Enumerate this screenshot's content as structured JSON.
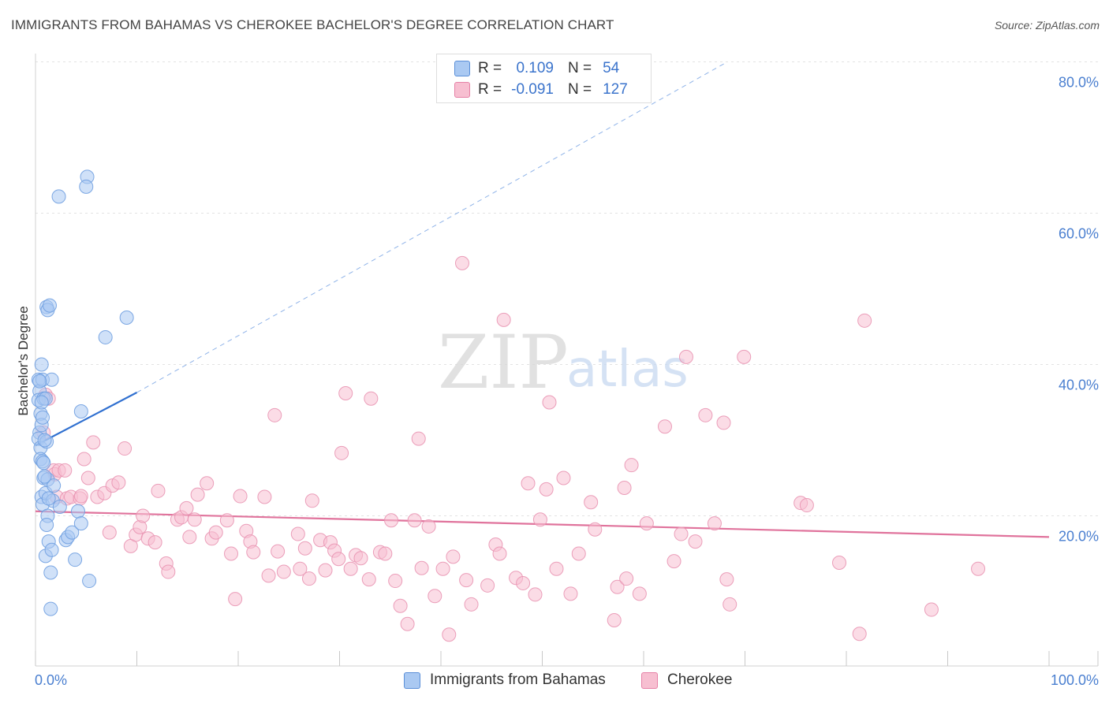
{
  "header": {
    "title": "IMMIGRANTS FROM BAHAMAS VS CHEROKEE BACHELOR'S DEGREE CORRELATION CHART",
    "source": "Source: ZipAtlas.com"
  },
  "watermark": {
    "zip": "ZIP",
    "atlas": "atlas"
  },
  "legend": {
    "rows": [
      {
        "r_label": "R =",
        "r_value": "0.109",
        "n_label": "N =",
        "n_value": "54",
        "color": "#aac9f2",
        "border": "#5a8fd8"
      },
      {
        "r_label": "R =",
        "r_value": "-0.091",
        "n_label": "N =",
        "n_value": "127",
        "color": "#f7bfd1",
        "border": "#e681a6"
      }
    ]
  },
  "bottom_legend": {
    "items": [
      {
        "label": "Immigrants from Bahamas",
        "color": "#aac9f2",
        "border": "#5a8fd8"
      },
      {
        "label": "Cherokee",
        "color": "#f7bfd1",
        "border": "#e681a6"
      }
    ]
  },
  "chart_data": {
    "type": "scatter",
    "title": "IMMIGRANTS FROM BAHAMAS VS CHEROKEE BACHELOR'S DEGREE CORRELATION CHART",
    "xlabel": "",
    "ylabel": "Bachelor's Degree",
    "xlim": [
      0,
      100
    ],
    "ylim": [
      0,
      80
    ],
    "x_tick_labels": [
      "0.0%",
      "100.0%"
    ],
    "y_ticks": [
      20,
      40,
      60,
      80
    ],
    "y_tick_labels": [
      "20.0%",
      "40.0%",
      "60.0%",
      "80.0%"
    ],
    "grid": true,
    "series": [
      {
        "name": "Immigrants from Bahamas",
        "color": "#aac9f2",
        "edge": "#6f9ee0",
        "trend": {
          "x": [
            0,
            10
          ],
          "y": [
            29.3,
            36.3
          ],
          "color": "#3070d0"
        },
        "trend_ext": {
          "x": [
            10,
            68
          ],
          "y": [
            36.3,
            79.8
          ],
          "color": "#8fb3e8"
        },
        "points": [
          [
            0.3,
            38.0
          ],
          [
            0.4,
            36.5
          ],
          [
            0.3,
            35.3
          ],
          [
            0.5,
            33.5
          ],
          [
            0.4,
            31.0
          ],
          [
            0.3,
            30.2
          ],
          [
            0.5,
            29.0
          ],
          [
            0.6,
            40.0
          ],
          [
            0.7,
            38.0
          ],
          [
            0.8,
            35.5
          ],
          [
            0.6,
            32.0
          ],
          [
            0.5,
            27.5
          ],
          [
            0.7,
            27.2
          ],
          [
            0.8,
            25.0
          ],
          [
            0.6,
            22.5
          ],
          [
            0.7,
            21.5
          ],
          [
            1.0,
            35.5
          ],
          [
            1.1,
            29.8
          ],
          [
            1.2,
            24.8
          ],
          [
            1.0,
            23.0
          ],
          [
            1.2,
            20.0
          ],
          [
            1.1,
            18.8
          ],
          [
            1.3,
            16.6
          ],
          [
            1.0,
            14.7
          ],
          [
            1.5,
            12.5
          ],
          [
            1.5,
            7.7
          ],
          [
            1.6,
            15.5
          ],
          [
            1.7,
            22.0
          ],
          [
            1.8,
            24.0
          ],
          [
            1.1,
            47.6
          ],
          [
            1.2,
            47.2
          ],
          [
            1.4,
            47.8
          ],
          [
            1.6,
            38.0
          ],
          [
            2.3,
            62.2
          ],
          [
            2.4,
            21.2
          ],
          [
            3.0,
            16.8
          ],
          [
            3.2,
            17.2
          ],
          [
            3.6,
            17.8
          ],
          [
            3.9,
            14.2
          ],
          [
            4.2,
            20.6
          ],
          [
            4.5,
            19.0
          ],
          [
            4.5,
            33.8
          ],
          [
            5.1,
            64.8
          ],
          [
            5.0,
            63.5
          ],
          [
            5.3,
            11.4
          ],
          [
            6.9,
            43.6
          ],
          [
            9.0,
            46.2
          ],
          [
            0.9,
            30.0
          ],
          [
            0.8,
            27.0
          ],
          [
            0.4,
            37.8
          ],
          [
            0.6,
            35.0
          ],
          [
            0.7,
            33.0
          ],
          [
            0.9,
            25.2
          ],
          [
            1.3,
            22.3
          ]
        ]
      },
      {
        "name": "Cherokee",
        "color": "#f7bfd1",
        "edge": "#e995b3",
        "trend": {
          "x": [
            0,
            100
          ],
          "y": [
            20.6,
            17.2
          ],
          "color": "#e0739c"
        },
        "points": [
          [
            0.8,
            31.0
          ],
          [
            1.0,
            36.0
          ],
          [
            1.3,
            35.5
          ],
          [
            1.8,
            26.0
          ],
          [
            1.9,
            25.5
          ],
          [
            2.1,
            22.5
          ],
          [
            2.3,
            26.0
          ],
          [
            2.9,
            26.0
          ],
          [
            3.1,
            22.3
          ],
          [
            3.5,
            22.5
          ],
          [
            4.4,
            22.3
          ],
          [
            4.5,
            22.6
          ],
          [
            4.8,
            27.5
          ],
          [
            5.2,
            25.0
          ],
          [
            5.7,
            29.7
          ],
          [
            6.1,
            22.5
          ],
          [
            6.8,
            23.0
          ],
          [
            7.3,
            17.8
          ],
          [
            7.6,
            24.0
          ],
          [
            8.2,
            24.4
          ],
          [
            8.8,
            28.9
          ],
          [
            9.4,
            16.0
          ],
          [
            9.9,
            17.5
          ],
          [
            10.3,
            18.5
          ],
          [
            10.6,
            20.0
          ],
          [
            11.1,
            17.0
          ],
          [
            11.8,
            16.5
          ],
          [
            12.1,
            23.3
          ],
          [
            12.9,
            13.7
          ],
          [
            13.1,
            12.6
          ],
          [
            14.0,
            19.5
          ],
          [
            14.4,
            19.8
          ],
          [
            14.9,
            21.0
          ],
          [
            15.2,
            17.2
          ],
          [
            15.7,
            19.5
          ],
          [
            16.0,
            22.8
          ],
          [
            16.9,
            24.3
          ],
          [
            17.4,
            17.0
          ],
          [
            17.8,
            17.8
          ],
          [
            18.9,
            19.4
          ],
          [
            19.3,
            15.0
          ],
          [
            19.7,
            9.0
          ],
          [
            20.2,
            22.6
          ],
          [
            20.8,
            18.0
          ],
          [
            21.2,
            16.6
          ],
          [
            21.5,
            15.2
          ],
          [
            22.6,
            22.5
          ],
          [
            23.0,
            12.1
          ],
          [
            23.6,
            33.3
          ],
          [
            23.9,
            15.3
          ],
          [
            24.5,
            12.6
          ],
          [
            25.9,
            17.6
          ],
          [
            26.1,
            13.0
          ],
          [
            26.6,
            15.7
          ],
          [
            27.0,
            11.7
          ],
          [
            27.3,
            22.0
          ],
          [
            28.1,
            16.8
          ],
          [
            28.6,
            12.8
          ],
          [
            29.1,
            16.5
          ],
          [
            29.5,
            15.4
          ],
          [
            29.9,
            14.3
          ],
          [
            30.2,
            28.3
          ],
          [
            30.6,
            36.2
          ],
          [
            31.1,
            13.0
          ],
          [
            31.6,
            14.8
          ],
          [
            32.1,
            14.4
          ],
          [
            32.9,
            11.6
          ],
          [
            33.1,
            35.5
          ],
          [
            34.0,
            15.2
          ],
          [
            34.5,
            15.0
          ],
          [
            35.1,
            19.4
          ],
          [
            35.5,
            11.4
          ],
          [
            36.0,
            8.1
          ],
          [
            36.7,
            5.7
          ],
          [
            37.4,
            19.4
          ],
          [
            37.8,
            30.2
          ],
          [
            38.1,
            13.1
          ],
          [
            38.8,
            18.6
          ],
          [
            39.4,
            9.4
          ],
          [
            40.2,
            13.0
          ],
          [
            40.8,
            4.3
          ],
          [
            41.2,
            14.6
          ],
          [
            42.1,
            53.4
          ],
          [
            42.5,
            11.5
          ],
          [
            43.0,
            8.3
          ],
          [
            44.6,
            10.8
          ],
          [
            45.4,
            16.2
          ],
          [
            45.8,
            15.0
          ],
          [
            46.2,
            45.9
          ],
          [
            47.4,
            11.8
          ],
          [
            48.1,
            11.1
          ],
          [
            48.6,
            24.3
          ],
          [
            49.3,
            9.6
          ],
          [
            49.8,
            19.5
          ],
          [
            50.7,
            35.0
          ],
          [
            50.4,
            23.5
          ],
          [
            51.4,
            13.0
          ],
          [
            52.1,
            25.0
          ],
          [
            52.8,
            9.7
          ],
          [
            53.6,
            15.0
          ],
          [
            54.8,
            21.8
          ],
          [
            55.2,
            18.2
          ],
          [
            57.1,
            6.2
          ],
          [
            57.4,
            10.6
          ],
          [
            58.1,
            23.7
          ],
          [
            58.3,
            11.7
          ],
          [
            58.8,
            26.7
          ],
          [
            59.6,
            9.7
          ],
          [
            60.3,
            19.0
          ],
          [
            62.1,
            31.8
          ],
          [
            63.0,
            14.0
          ],
          [
            63.7,
            17.6
          ],
          [
            64.2,
            41.0
          ],
          [
            65.1,
            16.6
          ],
          [
            66.1,
            33.3
          ],
          [
            67.0,
            19.0
          ],
          [
            67.9,
            32.3
          ],
          [
            68.2,
            11.6
          ],
          [
            68.5,
            8.3
          ],
          [
            69.9,
            41.0
          ],
          [
            75.5,
            21.7
          ],
          [
            76.1,
            21.4
          ],
          [
            79.3,
            13.8
          ],
          [
            81.3,
            4.4
          ],
          [
            81.8,
            45.8
          ],
          [
            88.4,
            7.6
          ],
          [
            93.0,
            13.0
          ]
        ]
      }
    ]
  }
}
